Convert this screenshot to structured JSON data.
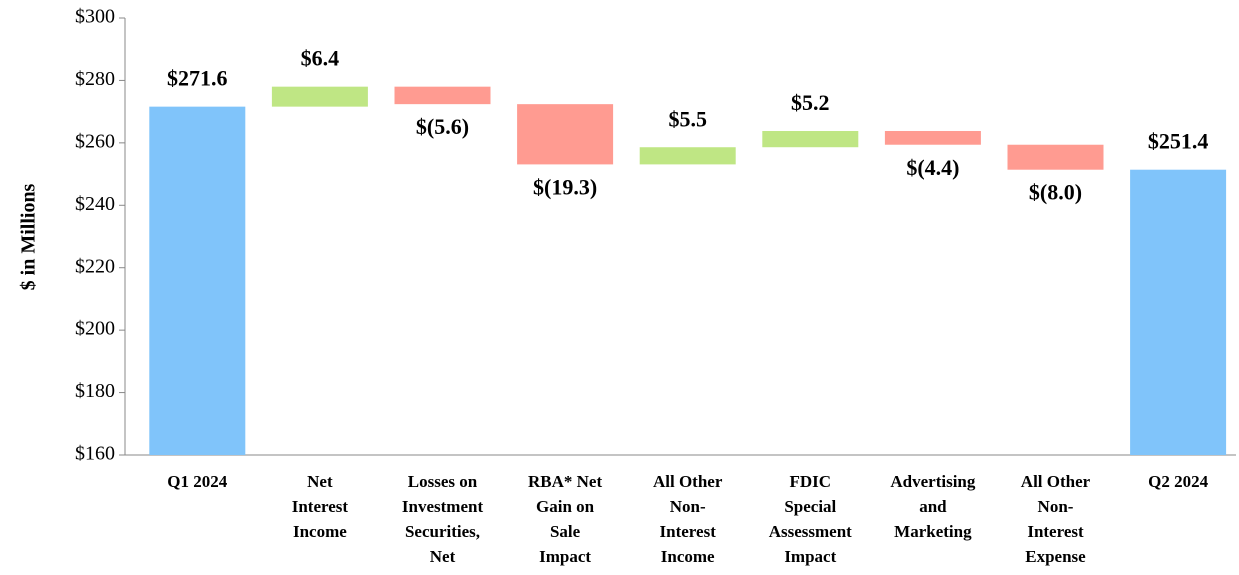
{
  "chart_data": {
    "type": "waterfall",
    "y_axis_label": "$ in Millions",
    "categories": [
      [
        "Q1 2024"
      ],
      [
        "Net",
        "Interest",
        "Income"
      ],
      [
        "Losses on",
        "Investment",
        "Securities,",
        "Net"
      ],
      [
        "RBA* Net",
        "Gain on",
        "Sale",
        "Impact"
      ],
      [
        "All Other",
        "Non-",
        "Interest",
        "Income"
      ],
      [
        "FDIC",
        "Special",
        "Assessment",
        "Impact"
      ],
      [
        "Advertising",
        "and",
        "Marketing"
      ],
      [
        "All Other",
        "Non-",
        "Interest",
        "Expense"
      ],
      [
        "Q2 2024"
      ]
    ],
    "measure": [
      "absolute",
      "relative",
      "relative",
      "relative",
      "relative",
      "relative",
      "relative",
      "relative",
      "absolute"
    ],
    "values": [
      271.6,
      6.4,
      -5.6,
      -19.3,
      5.5,
      5.2,
      -4.4,
      -8.0,
      251.4
    ],
    "value_labels": [
      "$271.6",
      "$6.4",
      "$(5.6)",
      "$(19.3)",
      "$5.5",
      "$5.2",
      "$(4.4)",
      "$(8.0)",
      "$251.4"
    ],
    "colors": {
      "total": "#80c4fa",
      "increase": "#bfe684",
      "decrease": "#ff9b91"
    },
    "ylim": [
      160,
      300
    ],
    "yticks": [
      {
        "value": 160,
        "label": "$160"
      },
      {
        "value": 180,
        "label": "$180"
      },
      {
        "value": 200,
        "label": "$200"
      },
      {
        "value": 220,
        "label": "$220"
      },
      {
        "value": 240,
        "label": "$240"
      },
      {
        "value": 260,
        "label": "$260"
      },
      {
        "value": 280,
        "label": "$280"
      },
      {
        "value": 300,
        "label": "$300"
      }
    ],
    "grid": false
  }
}
